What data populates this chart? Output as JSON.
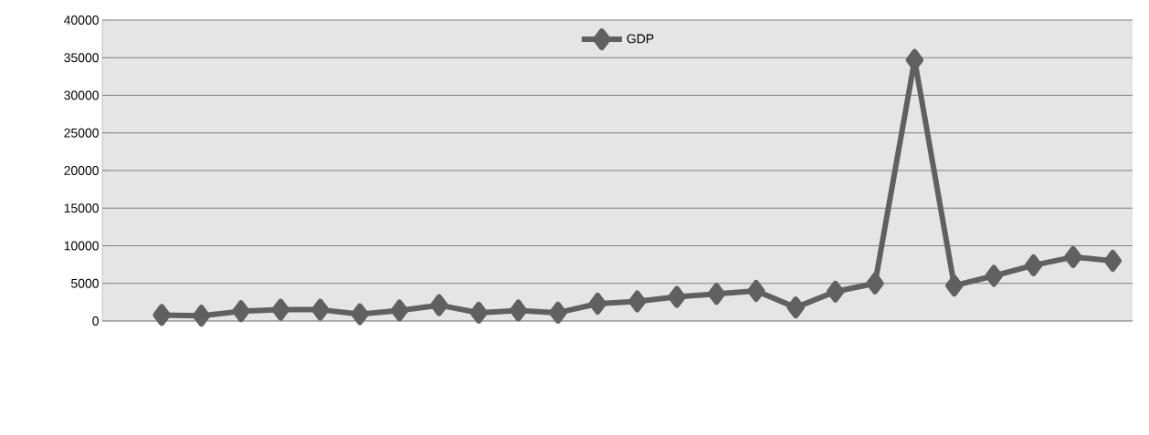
{
  "chart_data": {
    "type": "line",
    "categories": [
      null,
      null,
      null,
      null,
      null,
      null,
      null,
      null,
      null,
      null,
      null,
      null,
      null,
      null,
      null,
      null,
      null,
      null,
      null,
      null,
      null,
      null,
      null,
      null,
      null,
      null
    ],
    "series": [
      {
        "name": "GDP",
        "color": "#606060",
        "values": [
          null,
          800,
          700,
          1300,
          1500,
          1500,
          900,
          1400,
          2100,
          1100,
          1400,
          1100,
          2300,
          2600,
          3200,
          3600,
          4000,
          1800,
          3900,
          5000,
          34700,
          4700,
          6000,
          7400,
          8500,
          8000
        ]
      }
    ],
    "ylim": [
      0,
      40000
    ],
    "yticks": [
      0,
      5000,
      10000,
      15000,
      20000,
      25000,
      30000,
      35000,
      40000
    ],
    "grid": "y",
    "legend": "top",
    "marker": "diamond",
    "line_style": "solid"
  }
}
